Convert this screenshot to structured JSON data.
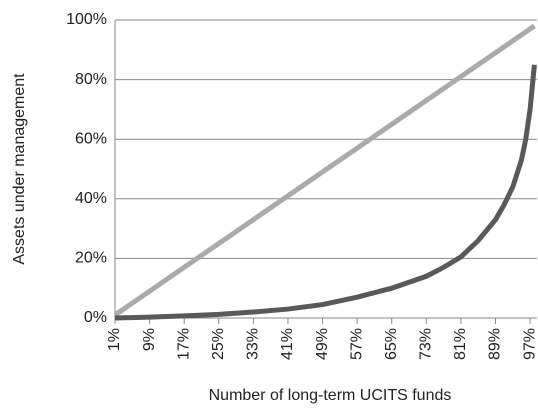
{
  "chart_data": {
    "type": "line",
    "x_label": "Number of long-term UCITS funds",
    "y_label": "Assets under management",
    "x": [
      1,
      9,
      17,
      25,
      33,
      41,
      49,
      57,
      65,
      73,
      77,
      81,
      85,
      89,
      91,
      93,
      95,
      96,
      97,
      98
    ],
    "series": [
      {
        "color": "#aaaaaa",
        "values": [
          1,
          9,
          17,
          25,
          33,
          41,
          49,
          57,
          65,
          73,
          77,
          81,
          85,
          89,
          91,
          93,
          95,
          96,
          97,
          98
        ]
      },
      {
        "color": "#595959",
        "values": [
          0,
          0.3,
          0.7,
          1.2,
          2,
          3,
          4.5,
          7,
          10,
          14,
          17,
          20.5,
          26,
          33,
          38,
          44,
          53,
          60,
          70,
          85
        ]
      }
    ],
    "xlim": [
      1,
      98.6
    ],
    "ylim": [
      0,
      100
    ],
    "xticks": [
      {
        "value": 1,
        "label": "1%"
      },
      {
        "value": 9,
        "label": "9%"
      },
      {
        "value": 17,
        "label": "17%"
      },
      {
        "value": 25,
        "label": "25%"
      },
      {
        "value": 33,
        "label": "33%"
      },
      {
        "value": 41,
        "label": "41%"
      },
      {
        "value": 49,
        "label": "49%"
      },
      {
        "value": 57,
        "label": "57%"
      },
      {
        "value": 65,
        "label": "65%"
      },
      {
        "value": 73,
        "label": "73%"
      },
      {
        "value": 81,
        "label": "81%"
      },
      {
        "value": 89,
        "label": "89%"
      },
      {
        "value": 97,
        "label": "97%"
      }
    ],
    "yticks": [
      {
        "value": 0,
        "label": "0%"
      },
      {
        "value": 20,
        "label": "20%"
      },
      {
        "value": 40,
        "label": "40%"
      },
      {
        "value": 60,
        "label": "60%"
      },
      {
        "value": 80,
        "label": "80%"
      },
      {
        "value": 100,
        "label": "100%"
      }
    ],
    "grid": true
  }
}
